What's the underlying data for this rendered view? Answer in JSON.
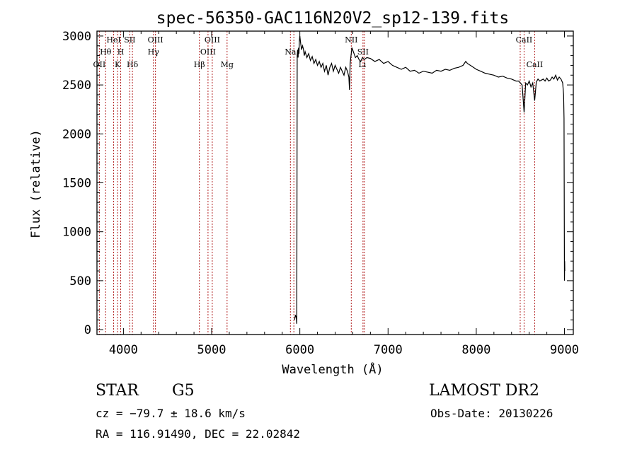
{
  "chart_data": {
    "type": "line",
    "title": "spec-56350-GAC116N20V2_sp12-139.fits",
    "xlabel": "Wavelength (Å)",
    "ylabel": "Flux (relative)",
    "xlim": [
      3700,
      9100
    ],
    "ylim": [
      -50,
      3050
    ],
    "xticks": [
      4000,
      5000,
      6000,
      7000,
      8000,
      9000
    ],
    "yticks": [
      0,
      500,
      1000,
      1500,
      2000,
      2500,
      3000
    ],
    "grid": false,
    "spectrum": {
      "x": [
        5940,
        5950,
        5960,
        5965,
        5970,
        5975,
        5980,
        5985,
        5990,
        5995,
        6000,
        6010,
        6020,
        6030,
        6040,
        6050,
        6060,
        6080,
        6100,
        6120,
        6140,
        6160,
        6180,
        6200,
        6220,
        6240,
        6260,
        6280,
        6300,
        6320,
        6340,
        6360,
        6380,
        6400,
        6420,
        6440,
        6460,
        6480,
        6500,
        6520,
        6540,
        6556,
        6563,
        6570,
        6590,
        6610,
        6630,
        6650,
        6670,
        6690,
        6710,
        6730,
        6760,
        6800,
        6850,
        6900,
        6950,
        7000,
        7050,
        7100,
        7150,
        7200,
        7250,
        7300,
        7350,
        7400,
        7450,
        7500,
        7550,
        7600,
        7650,
        7700,
        7750,
        7800,
        7850,
        7880,
        7900,
        7950,
        8000,
        8050,
        8100,
        8150,
        8200,
        8250,
        8300,
        8350,
        8400,
        8450,
        8480,
        8500,
        8520,
        8542,
        8560,
        8580,
        8600,
        8620,
        8640,
        8662,
        8680,
        8700,
        8720,
        8740,
        8760,
        8780,
        8800,
        8820,
        8840,
        8860,
        8880,
        8900,
        8920,
        8940,
        8960,
        8980,
        8990,
        8995,
        9000,
        9002,
        9004
      ],
      "y": [
        100,
        150,
        120,
        60,
        2800,
        2860,
        2780,
        2880,
        2820,
        2950,
        3000,
        2920,
        2860,
        2900,
        2870,
        2800,
        2840,
        2780,
        2820,
        2750,
        2790,
        2720,
        2760,
        2700,
        2740,
        2680,
        2720,
        2640,
        2700,
        2600,
        2680,
        2720,
        2640,
        2700,
        2660,
        2620,
        2680,
        2640,
        2600,
        2680,
        2640,
        2580,
        2450,
        2720,
        2880,
        2830,
        2780,
        2800,
        2760,
        2740,
        2780,
        2760,
        2780,
        2770,
        2740,
        2760,
        2720,
        2740,
        2700,
        2680,
        2660,
        2680,
        2640,
        2650,
        2620,
        2640,
        2630,
        2620,
        2650,
        2640,
        2660,
        2650,
        2670,
        2680,
        2700,
        2740,
        2720,
        2690,
        2660,
        2640,
        2620,
        2610,
        2600,
        2580,
        2590,
        2570,
        2560,
        2540,
        2540,
        2520,
        2500,
        2220,
        2520,
        2500,
        2540,
        2480,
        2520,
        2340,
        2530,
        2560,
        2540,
        2550,
        2560,
        2540,
        2570,
        2540,
        2550,
        2580,
        2560,
        2600,
        2550,
        2580,
        2560,
        2520,
        2400,
        2160,
        500,
        700,
        600
      ]
    },
    "line_labels": [
      {
        "name": "OII",
        "wavelength": 3727,
        "row": 3
      },
      {
        "name": "Hθ",
        "wavelength": 3798,
        "row": 2
      },
      {
        "name": "HeI",
        "wavelength": 3889,
        "row": 1
      },
      {
        "name": "K",
        "wavelength": 3934,
        "row": 3
      },
      {
        "name": "H",
        "wavelength": 3969,
        "row": 2
      },
      {
        "name": "SII",
        "wavelength": 4072,
        "row": 1
      },
      {
        "name": "Hδ",
        "wavelength": 4102,
        "row": 3
      },
      {
        "name": "OIII",
        "wavelength": 4363,
        "row": 1
      },
      {
        "name": "Hγ",
        "wavelength": 4340,
        "row": 2
      },
      {
        "name": "Hβ",
        "wavelength": 4861,
        "row": 3
      },
      {
        "name": "OIII",
        "wavelength": 4959,
        "row": 2
      },
      {
        "name": "OIII",
        "wavelength": 5007,
        "row": 1
      },
      {
        "name": "Mg",
        "wavelength": 5175,
        "row": 3
      },
      {
        "name": "Na",
        "wavelength": 5893,
        "row": 2
      },
      {
        "name": "NII",
        "wavelength": 6583,
        "row": 1
      },
      {
        "name": "SII",
        "wavelength": 6716,
        "row": 2
      },
      {
        "name": "Li",
        "wavelength": 6708,
        "row": 3
      },
      {
        "name": "CaII",
        "wavelength": 8542,
        "row": 1
      },
      {
        "name": "CaII",
        "wavelength": 8662,
        "row": 3
      }
    ],
    "marker_lines": [
      3727,
      3798,
      3889,
      3934,
      3969,
      4072,
      4102,
      4340,
      4363,
      4861,
      4959,
      5007,
      5175,
      5893,
      5932,
      6583,
      6716,
      6731,
      8498,
      8542,
      8662
    ]
  },
  "info": {
    "object_class": "STAR",
    "subclass": "G5",
    "survey": "LAMOST DR2",
    "cz_line": "cz = −79.7 ± 18.6 km/s",
    "obs_date": "Obs-Date: 20130226",
    "coords": "RA = 116.91490, DEC =  22.02842"
  },
  "colors": {
    "spectrum": "#000000",
    "marker_line": "#b22222"
  }
}
